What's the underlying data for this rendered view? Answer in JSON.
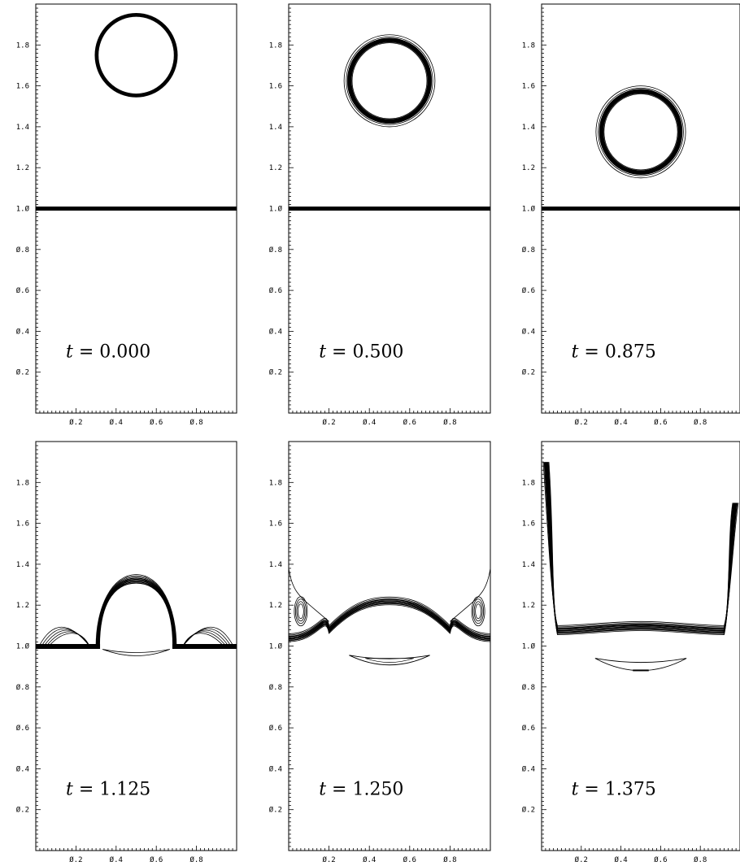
{
  "chart_data": [
    {
      "type": "contour",
      "annotation": {
        "var": "t",
        "value": "0.000"
      },
      "xlim": [
        0,
        1
      ],
      "ylim": [
        0,
        2
      ],
      "xticks": [
        "0.2",
        "0.4",
        "0.6",
        "0.8"
      ],
      "yticks": [
        "0.2",
        "0.4",
        "0.6",
        "0.8",
        "1.0",
        "1.2",
        "1.4",
        "1.6",
        "1.8"
      ],
      "features": {
        "bubble_center": [
          0.5,
          1.75
        ],
        "bubble_radius": 0.2,
        "interface_y": 1.0
      }
    },
    {
      "type": "contour",
      "annotation": {
        "var": "t",
        "value": "0.500"
      },
      "xlim": [
        0,
        1
      ],
      "ylim": [
        0,
        2
      ],
      "xticks": [
        "0.2",
        "0.4",
        "0.6",
        "0.8"
      ],
      "yticks": [
        "0.2",
        "0.4",
        "0.6",
        "0.8",
        "1.0",
        "1.2",
        "1.4",
        "1.6",
        "1.8"
      ],
      "features": {
        "bubble_center": [
          0.5,
          1.625
        ],
        "bubble_radius": 0.2,
        "interface_y": 1.0
      }
    },
    {
      "type": "contour",
      "annotation": {
        "var": "t",
        "value": "0.875"
      },
      "xlim": [
        0,
        1
      ],
      "ylim": [
        0,
        2
      ],
      "xticks": [
        "0.2",
        "0.4",
        "0.6",
        "0.8"
      ],
      "yticks": [
        "0.2",
        "0.4",
        "0.6",
        "0.8",
        "1.0",
        "1.2",
        "1.4",
        "1.6",
        "1.8"
      ],
      "features": {
        "bubble_center": [
          0.5,
          1.375
        ],
        "bubble_radius": 0.2,
        "interface_y": 1.0
      }
    },
    {
      "type": "contour",
      "annotation": {
        "var": "t",
        "value": "1.125"
      },
      "xlim": [
        0,
        1
      ],
      "ylim": [
        0,
        2
      ],
      "xticks": [
        "0.2",
        "0.4",
        "0.6",
        "0.8"
      ],
      "yticks": [
        "0.2",
        "0.4",
        "0.6",
        "0.8",
        "1.0",
        "1.2",
        "1.4",
        "1.6",
        "1.8"
      ],
      "features": {
        "bubble_center": [
          0.5,
          1.15
        ],
        "bubble_radius": 0.2,
        "interface_y": 1.0
      }
    },
    {
      "type": "contour",
      "annotation": {
        "var": "t",
        "value": "1.250"
      },
      "xlim": [
        0,
        1
      ],
      "ylim": [
        0,
        2
      ],
      "xticks": [
        "0.2",
        "0.4",
        "0.6",
        "0.8"
      ],
      "yticks": [
        "0.2",
        "0.4",
        "0.6",
        "0.8",
        "1.0",
        "1.2",
        "1.4",
        "1.6",
        "1.8"
      ],
      "features": {
        "bubble_center": [
          0.5,
          1.2
        ],
        "bubble_radius": 0.2,
        "interface_y": 1.0
      }
    },
    {
      "type": "contour",
      "annotation": {
        "var": "t",
        "value": "1.375"
      },
      "xlim": [
        0,
        1
      ],
      "ylim": [
        0,
        2
      ],
      "xticks": [
        "0.2",
        "0.4",
        "0.6",
        "0.8"
      ],
      "yticks": [
        "0.2",
        "0.4",
        "0.6",
        "0.8",
        "1.0",
        "1.2",
        "1.4",
        "1.6",
        "1.8"
      ],
      "features": {
        "bubble_center": [
          0.5,
          1.1
        ],
        "bubble_radius": 0.2,
        "interface_y": 1.0
      }
    }
  ]
}
